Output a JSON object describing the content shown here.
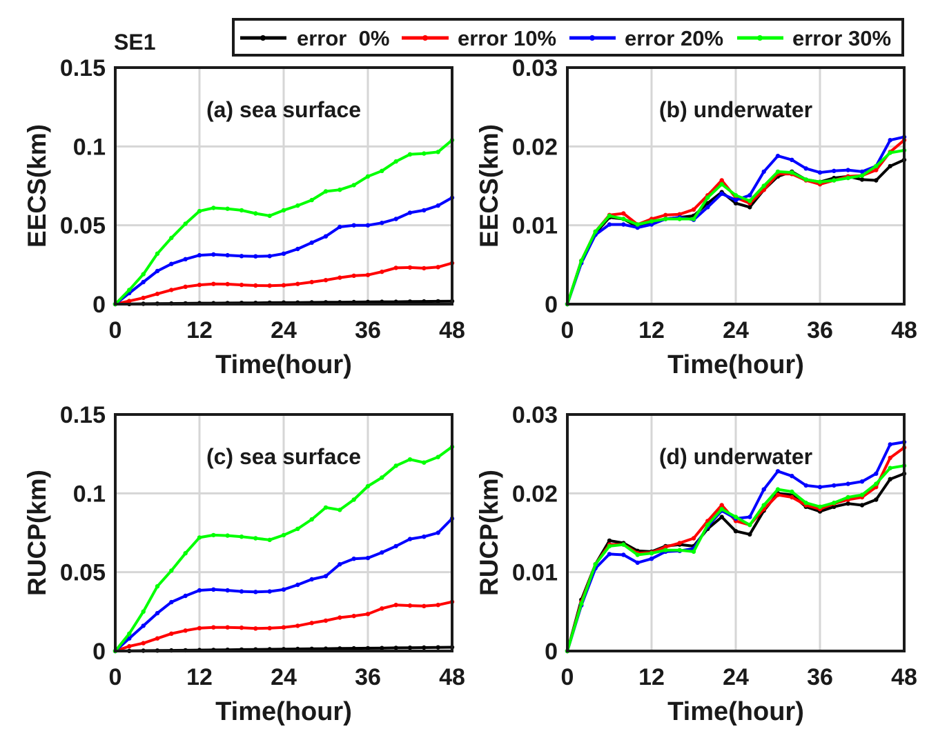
{
  "figure": {
    "label": "SE1"
  },
  "legend": {
    "placement": "top",
    "items": [
      {
        "label": "error  0%",
        "color": "#000000"
      },
      {
        "label": "error 10%",
        "color": "#ff0000"
      },
      {
        "label": "error 20%",
        "color": "#0000ff"
      },
      {
        "label": "error 30%",
        "color": "#00ff00"
      }
    ]
  },
  "chart_data": [
    {
      "type": "line",
      "title": "(a) sea surface",
      "xlabel": "Time(hour)",
      "ylabel": "EECS(km)",
      "xlim": [
        0,
        48
      ],
      "ylim": [
        0,
        0.15
      ],
      "xticks": [
        0,
        12,
        24,
        36,
        48
      ],
      "xtick_labels": [
        "0",
        "12",
        "24",
        "36",
        "48"
      ],
      "yticks": [
        0,
        0.05,
        0.1,
        0.15
      ],
      "ytick_labels": [
        "0",
        "0.05",
        "0.1",
        "0.15"
      ],
      "grid": true,
      "x": [
        0,
        2,
        4,
        6,
        8,
        10,
        12,
        14,
        16,
        18,
        20,
        22,
        24,
        26,
        28,
        30,
        32,
        34,
        36,
        38,
        40,
        42,
        44,
        46,
        48
      ],
      "series": [
        {
          "name": "error  0%",
          "color": "#000000",
          "values": [
            0,
            0.0001,
            0.0002,
            0.0003,
            0.0004,
            0.0005,
            0.0006,
            0.0006,
            0.0007,
            0.0008,
            0.0008,
            0.0009,
            0.001,
            0.001,
            0.0011,
            0.0012,
            0.0012,
            0.0013,
            0.0014,
            0.0015,
            0.0015,
            0.0016,
            0.0017,
            0.0018,
            0.0019
          ]
        },
        {
          "name": "error 10%",
          "color": "#ff0000",
          "values": [
            0,
            0.002,
            0.004,
            0.0065,
            0.009,
            0.011,
            0.0122,
            0.0128,
            0.0127,
            0.0122,
            0.0118,
            0.0117,
            0.012,
            0.0128,
            0.014,
            0.0152,
            0.0168,
            0.018,
            0.0185,
            0.0205,
            0.023,
            0.0232,
            0.0228,
            0.0235,
            0.026
          ]
        },
        {
          "name": "error 20%",
          "color": "#0000ff",
          "values": [
            0,
            0.007,
            0.014,
            0.021,
            0.0255,
            0.0285,
            0.031,
            0.0315,
            0.031,
            0.0305,
            0.0303,
            0.0305,
            0.032,
            0.035,
            0.039,
            0.043,
            0.049,
            0.05,
            0.05,
            0.0515,
            0.054,
            0.058,
            0.0595,
            0.0625,
            0.0675
          ]
        },
        {
          "name": "error 30%",
          "color": "#00ff00",
          "values": [
            0,
            0.009,
            0.019,
            0.032,
            0.042,
            0.051,
            0.059,
            0.061,
            0.0605,
            0.0595,
            0.0575,
            0.056,
            0.0595,
            0.0625,
            0.066,
            0.0715,
            0.0725,
            0.0755,
            0.081,
            0.0845,
            0.0905,
            0.095,
            0.0955,
            0.0965,
            0.104
          ]
        }
      ]
    },
    {
      "type": "line",
      "title": "(b) underwater",
      "xlabel": "Time(hour)",
      "ylabel": "EECS(km)",
      "xlim": [
        0,
        48
      ],
      "ylim": [
        0,
        0.03
      ],
      "xticks": [
        0,
        12,
        24,
        36,
        48
      ],
      "xtick_labels": [
        "0",
        "12",
        "24",
        "36",
        "48"
      ],
      "yticks": [
        0,
        0.01,
        0.02,
        0.03
      ],
      "ytick_labels": [
        "0",
        "0.01",
        "0.02",
        "0.03"
      ],
      "grid": true,
      "x": [
        0,
        2,
        4,
        6,
        8,
        10,
        12,
        14,
        16,
        18,
        20,
        22,
        24,
        26,
        28,
        30,
        32,
        34,
        36,
        38,
        40,
        42,
        44,
        46,
        48
      ],
      "series": [
        {
          "name": "error  0%",
          "color": "#000000",
          "values": [
            0,
            0.0055,
            0.009,
            0.011,
            0.0108,
            0.0098,
            0.0103,
            0.0108,
            0.011,
            0.0112,
            0.0128,
            0.0142,
            0.0128,
            0.0123,
            0.0145,
            0.0162,
            0.0168,
            0.0158,
            0.0155,
            0.016,
            0.0162,
            0.0158,
            0.0157,
            0.0175,
            0.0183
          ]
        },
        {
          "name": "error 10%",
          "color": "#ff0000",
          "values": [
            0,
            0.0055,
            0.0092,
            0.0113,
            0.0115,
            0.0101,
            0.0108,
            0.0113,
            0.0114,
            0.012,
            0.0138,
            0.0157,
            0.0135,
            0.0128,
            0.0145,
            0.0165,
            0.0165,
            0.0157,
            0.0152,
            0.0157,
            0.0162,
            0.0163,
            0.017,
            0.0193,
            0.0208
          ]
        },
        {
          "name": "error 20%",
          "color": "#0000ff",
          "values": [
            0,
            0.0052,
            0.0088,
            0.0101,
            0.0101,
            0.0097,
            0.0101,
            0.0108,
            0.011,
            0.0107,
            0.0123,
            0.014,
            0.0132,
            0.0138,
            0.0168,
            0.0188,
            0.0183,
            0.0172,
            0.0167,
            0.0169,
            0.017,
            0.0168,
            0.0175,
            0.0208,
            0.0212
          ]
        },
        {
          "name": "error 30%",
          "color": "#00ff00",
          "values": [
            0,
            0.0055,
            0.0092,
            0.0112,
            0.0108,
            0.0101,
            0.0105,
            0.0108,
            0.0108,
            0.0108,
            0.0135,
            0.0152,
            0.0138,
            0.0131,
            0.015,
            0.0168,
            0.0167,
            0.0158,
            0.0155,
            0.0157,
            0.016,
            0.0163,
            0.0175,
            0.0192,
            0.0195
          ]
        }
      ]
    },
    {
      "type": "line",
      "title": "(c) sea surface",
      "xlabel": "Time(hour)",
      "ylabel": "RUCP(km)",
      "xlim": [
        0,
        48
      ],
      "ylim": [
        0,
        0.15
      ],
      "xticks": [
        0,
        12,
        24,
        36,
        48
      ],
      "xtick_labels": [
        "0",
        "12",
        "24",
        "36",
        "48"
      ],
      "yticks": [
        0,
        0.05,
        0.1,
        0.15
      ],
      "ytick_labels": [
        "0",
        "0.05",
        "0.1",
        "0.15"
      ],
      "grid": true,
      "x": [
        0,
        2,
        4,
        6,
        8,
        10,
        12,
        14,
        16,
        18,
        20,
        22,
        24,
        26,
        28,
        30,
        32,
        34,
        36,
        38,
        40,
        42,
        44,
        46,
        48
      ],
      "series": [
        {
          "name": "error  0%",
          "color": "#000000",
          "values": [
            0,
            0.0001,
            0.0002,
            0.0003,
            0.0004,
            0.0005,
            0.0006,
            0.0007,
            0.0008,
            0.0009,
            0.001,
            0.0011,
            0.0012,
            0.0013,
            0.0014,
            0.0015,
            0.0016,
            0.0017,
            0.0018,
            0.0019,
            0.002,
            0.0021,
            0.0022,
            0.0023,
            0.0024
          ]
        },
        {
          "name": "error 10%",
          "color": "#ff0000",
          "values": [
            0,
            0.003,
            0.005,
            0.008,
            0.011,
            0.013,
            0.0145,
            0.015,
            0.015,
            0.0148,
            0.0143,
            0.0145,
            0.015,
            0.016,
            0.0178,
            0.0193,
            0.0212,
            0.0222,
            0.0235,
            0.027,
            0.0292,
            0.0288,
            0.0285,
            0.0292,
            0.0312
          ]
        },
        {
          "name": "error 20%",
          "color": "#0000ff",
          "values": [
            0,
            0.008,
            0.016,
            0.024,
            0.031,
            0.035,
            0.0385,
            0.039,
            0.0385,
            0.0378,
            0.0375,
            0.0378,
            0.039,
            0.042,
            0.0455,
            0.0475,
            0.055,
            0.0585,
            0.059,
            0.0625,
            0.0665,
            0.071,
            0.0725,
            0.075,
            0.084
          ]
        },
        {
          "name": "error 30%",
          "color": "#00ff00",
          "values": [
            0,
            0.011,
            0.025,
            0.041,
            0.051,
            0.062,
            0.072,
            0.0735,
            0.0732,
            0.0725,
            0.0715,
            0.0705,
            0.0735,
            0.0775,
            0.0835,
            0.091,
            0.0895,
            0.096,
            0.1045,
            0.11,
            0.1175,
            0.1215,
            0.1195,
            0.123,
            0.1295
          ]
        }
      ]
    },
    {
      "type": "line",
      "title": "(d) underwater",
      "xlabel": "Time(hour)",
      "ylabel": "RUCP(km)",
      "xlim": [
        0,
        48
      ],
      "ylim": [
        0,
        0.03
      ],
      "xticks": [
        0,
        12,
        24,
        36,
        48
      ],
      "xtick_labels": [
        "0",
        "12",
        "24",
        "36",
        "48"
      ],
      "yticks": [
        0,
        0.01,
        0.02,
        0.03
      ],
      "ytick_labels": [
        "0",
        "0.01",
        "0.02",
        "0.03"
      ],
      "grid": true,
      "x": [
        0,
        2,
        4,
        6,
        8,
        10,
        12,
        14,
        16,
        18,
        20,
        22,
        24,
        26,
        28,
        30,
        32,
        34,
        36,
        38,
        40,
        42,
        44,
        46,
        48
      ],
      "series": [
        {
          "name": "error  0%",
          "color": "#000000",
          "values": [
            0,
            0.0065,
            0.011,
            0.014,
            0.0137,
            0.0127,
            0.0126,
            0.0133,
            0.0135,
            0.0133,
            0.0155,
            0.017,
            0.0152,
            0.0148,
            0.0178,
            0.02,
            0.0198,
            0.0183,
            0.0177,
            0.0183,
            0.0187,
            0.0185,
            0.0192,
            0.0218,
            0.0225
          ]
        },
        {
          "name": "error 10%",
          "color": "#ff0000",
          "values": [
            0,
            0.0062,
            0.011,
            0.0135,
            0.0135,
            0.0124,
            0.0125,
            0.0132,
            0.0137,
            0.0143,
            0.0165,
            0.0185,
            0.0165,
            0.016,
            0.018,
            0.0198,
            0.0195,
            0.0185,
            0.018,
            0.0187,
            0.0192,
            0.0195,
            0.0208,
            0.0245,
            0.0258
          ]
        },
        {
          "name": "error 20%",
          "color": "#0000ff",
          "values": [
            0,
            0.0058,
            0.0105,
            0.0123,
            0.0122,
            0.0112,
            0.0117,
            0.0126,
            0.0127,
            0.013,
            0.0158,
            0.0178,
            0.0168,
            0.017,
            0.0205,
            0.0228,
            0.0222,
            0.021,
            0.0208,
            0.021,
            0.0212,
            0.0215,
            0.0225,
            0.0262,
            0.0265
          ]
        },
        {
          "name": "error 30%",
          "color": "#00ff00",
          "values": [
            0,
            0.006,
            0.011,
            0.0133,
            0.0135,
            0.0122,
            0.0124,
            0.0128,
            0.0128,
            0.0126,
            0.016,
            0.018,
            0.017,
            0.016,
            0.0185,
            0.0205,
            0.0202,
            0.0188,
            0.0183,
            0.0188,
            0.0195,
            0.0198,
            0.0212,
            0.0232,
            0.0235
          ]
        }
      ]
    }
  ]
}
